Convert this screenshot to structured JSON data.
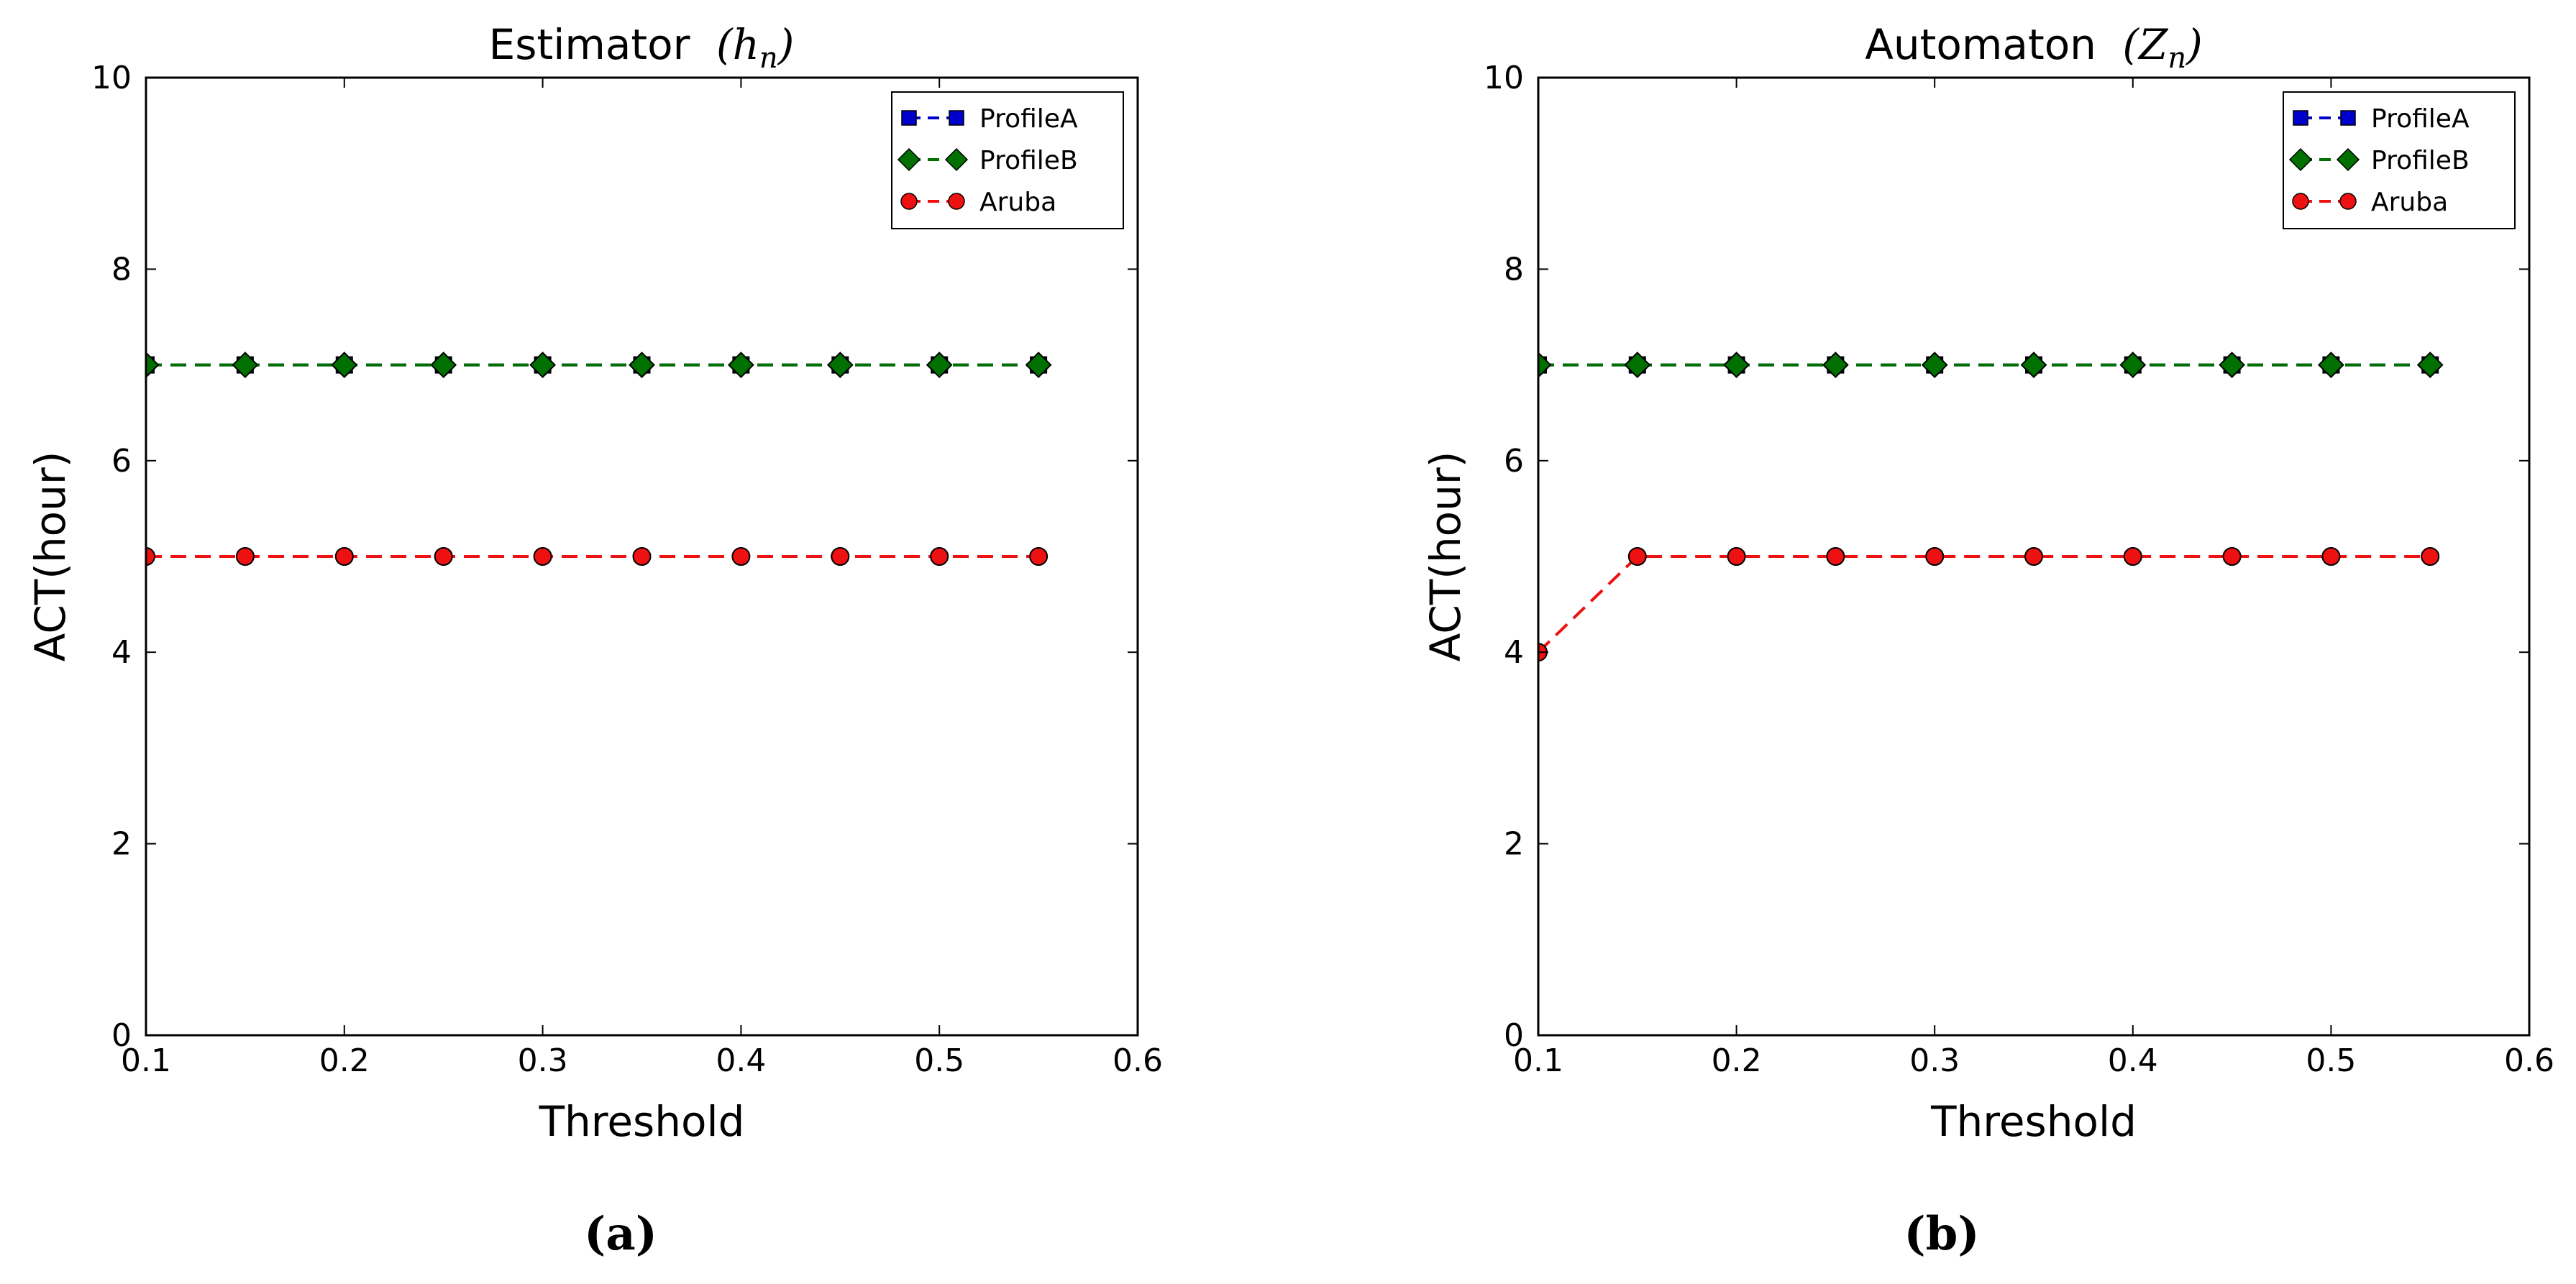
{
  "chart_data": [
    {
      "type": "line",
      "title": "Estimator",
      "title_symbol": "(h",
      "title_symbol_sub": "n",
      "title_symbol_close": ")",
      "xlabel": "Threshold",
      "ylabel": "ACT(hour)",
      "xlim": [
        0.1,
        0.6
      ],
      "ylim": [
        0,
        10
      ],
      "xticks": [
        "0.1",
        "0.2",
        "0.3",
        "0.4",
        "0.5",
        "0.6"
      ],
      "yticks": [
        "0",
        "2",
        "4",
        "6",
        "8",
        "10"
      ],
      "x": [
        0.1,
        0.15,
        0.2,
        0.25,
        0.3,
        0.35,
        0.4,
        0.45,
        0.5,
        0.55
      ],
      "series": [
        {
          "name": "ProfileA",
          "values": [
            7,
            7,
            7,
            7,
            7,
            7,
            7,
            7,
            7,
            7
          ],
          "color": "#0000cc",
          "marker": "square"
        },
        {
          "name": "ProfileB",
          "values": [
            7,
            7,
            7,
            7,
            7,
            7,
            7,
            7,
            7,
            7
          ],
          "color": "#007000",
          "marker": "diamond"
        },
        {
          "name": "Aruba",
          "values": [
            5,
            5,
            5,
            5,
            5,
            5,
            5,
            5,
            5,
            5
          ],
          "color": "#ee1111",
          "marker": "circle"
        }
      ],
      "legend": "top-right",
      "panel_label": "(a)"
    },
    {
      "type": "line",
      "title": "Automaton",
      "title_symbol": "(Z",
      "title_symbol_sub": "n",
      "title_symbol_close": ")",
      "xlabel": "Threshold",
      "ylabel": "ACT(hour)",
      "xlim": [
        0.1,
        0.6
      ],
      "ylim": [
        0,
        10
      ],
      "xticks": [
        "0.1",
        "0.2",
        "0.3",
        "0.4",
        "0.5",
        "0.6"
      ],
      "yticks": [
        "0",
        "2",
        "4",
        "6",
        "8",
        "10"
      ],
      "x": [
        0.1,
        0.15,
        0.2,
        0.25,
        0.3,
        0.35,
        0.4,
        0.45,
        0.5,
        0.55
      ],
      "series": [
        {
          "name": "ProfileA",
          "values": [
            7,
            7,
            7,
            7,
            7,
            7,
            7,
            7,
            7,
            7
          ],
          "color": "#0000cc",
          "marker": "square"
        },
        {
          "name": "ProfileB",
          "values": [
            7,
            7,
            7,
            7,
            7,
            7,
            7,
            7,
            7,
            7
          ],
          "color": "#007000",
          "marker": "diamond"
        },
        {
          "name": "Aruba",
          "values": [
            4,
            5,
            5,
            5,
            5,
            5,
            5,
            5,
            5,
            5
          ],
          "color": "#ee1111",
          "marker": "circle"
        }
      ],
      "legend": "top-right",
      "panel_label": "(b)"
    }
  ]
}
